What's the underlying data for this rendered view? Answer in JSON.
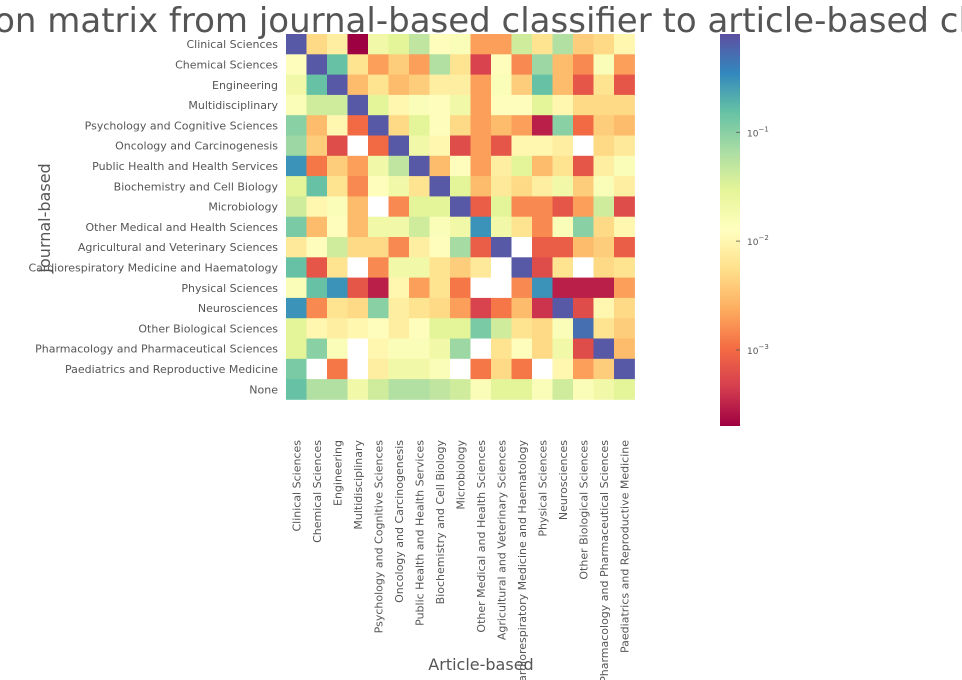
{
  "chart_data": {
    "type": "heatmap",
    "title": "Transition matrix from journal-based classifier to article-based classifier",
    "xlabel": "Article-based",
    "ylabel": "Journal-based",
    "y_categories": [
      "Clinical Sciences",
      "Chemical Sciences",
      "Engineering",
      "Multidisciplinary",
      "Psychology and Cognitive Sciences",
      "Oncology and Carcinogenesis",
      "Public Health and Health Services",
      "Biochemistry and Cell Biology",
      "Microbiology",
      "Other Medical and Health Sciences",
      "Agricultural and Veterinary Sciences",
      "Cardiorespiratory Medicine and Haematology",
      "Physical Sciences",
      "Neurosciences",
      "Other Biological Sciences",
      "Pharmacology and Pharmaceutical Sciences",
      "Paediatrics and Reproductive Medicine",
      "None"
    ],
    "x_categories": [
      "Clinical Sciences",
      "Chemical Sciences",
      "Engineering",
      "Multidisciplinary",
      "Psychology and Cognitive Sciences",
      "Oncology and Carcinogenesis",
      "Public Health and Health Services",
      "Biochemistry and Cell Biology",
      "Microbiology",
      "Other Medical and Health Sciences",
      "Agricultural and Veterinary Sciences",
      "Cardiorespiratory Medicine and Haematology",
      "Physical Sciences",
      "Neurosciences",
      "Other Biological Sciences",
      "Pharmacology and Pharmaceutical Sciences",
      "Paediatrics and Reproductive Medicine"
    ],
    "scale": "log",
    "colormap": "Spectral",
    "colorbar_range": [
      0.0002,
      0.8
    ],
    "colorbar_ticks": [
      {
        "base": "10",
        "exp": "−1",
        "value": 0.1
      },
      {
        "base": "10",
        "exp": "−2",
        "value": 0.01
      },
      {
        "base": "10",
        "exp": "−3",
        "value": 0.001
      }
    ],
    "values": [
      [
        0.7,
        0.005,
        0.008,
        0.0002,
        0.02,
        0.03,
        0.05,
        0.012,
        0.015,
        0.002,
        0.002,
        0.04,
        0.006,
        0.06,
        0.004,
        0.005,
        0.01
      ],
      [
        0.012,
        0.7,
        0.15,
        0.006,
        0.002,
        0.004,
        0.002,
        0.06,
        0.006,
        0.0005,
        0.012,
        0.0015,
        0.08,
        0.003,
        0.0015,
        0.015,
        0.002
      ],
      [
        0.02,
        0.15,
        0.7,
        0.003,
        0.006,
        0.003,
        0.004,
        0.008,
        0.008,
        0.002,
        0.015,
        0.004,
        0.15,
        0.003,
        0.0007,
        0.006,
        0.0007
      ],
      [
        0.015,
        0.04,
        0.04,
        0.7,
        0.03,
        0.01,
        0.015,
        0.012,
        0.02,
        0.002,
        0.012,
        0.012,
        0.03,
        0.01,
        0.005,
        0.005,
        0.005
      ],
      [
        0.1,
        0.003,
        0.01,
        0.001,
        0.7,
        0.005,
        0.03,
        0.012,
        0.005,
        0.002,
        0.003,
        0.002,
        0.0003,
        0.1,
        0.001,
        0.004,
        0.003
      ],
      [
        0.08,
        0.004,
        0.0006,
        null,
        0.001,
        0.7,
        0.02,
        0.01,
        0.0006,
        0.002,
        0.0007,
        0.01,
        0.01,
        0.008,
        null,
        0.005,
        0.007
      ],
      [
        0.3,
        0.0012,
        0.004,
        0.002,
        0.02,
        0.05,
        0.7,
        0.003,
        0.012,
        0.002,
        0.008,
        0.03,
        0.003,
        0.006,
        0.0007,
        0.008,
        0.015
      ],
      [
        0.03,
        0.15,
        0.006,
        0.0015,
        0.012,
        0.02,
        0.006,
        0.7,
        0.03,
        0.003,
        0.007,
        0.005,
        0.008,
        0.02,
        0.004,
        0.015,
        0.008
      ],
      [
        0.04,
        0.01,
        0.015,
        0.003,
        null,
        0.0015,
        0.03,
        0.03,
        0.7,
        0.0008,
        0.03,
        0.0015,
        0.0015,
        0.0007,
        0.002,
        0.04,
        0.0006
      ],
      [
        0.12,
        0.003,
        0.012,
        0.003,
        0.02,
        0.02,
        0.04,
        0.015,
        0.02,
        0.3,
        0.02,
        0.006,
        0.0015,
        0.015,
        0.1,
        0.005,
        0.01
      ],
      [
        0.007,
        0.012,
        0.04,
        0.005,
        0.005,
        0.0015,
        0.008,
        0.012,
        0.07,
        0.0008,
        0.7,
        null,
        0.0008,
        0.0008,
        0.003,
        0.004,
        0.0008
      ],
      [
        0.15,
        0.0007,
        0.006,
        null,
        0.0015,
        0.02,
        0.02,
        0.006,
        0.004,
        0.007,
        null,
        0.7,
        0.0006,
        0.006,
        null,
        0.005,
        0.006
      ],
      [
        0.015,
        0.15,
        0.3,
        0.0007,
        0.0003,
        0.01,
        0.002,
        0.006,
        0.0012,
        null,
        null,
        0.0015,
        0.3,
        0.0003,
        0.0003,
        0.0003,
        0.002
      ],
      [
        0.3,
        0.0015,
        0.006,
        0.005,
        0.1,
        0.008,
        0.006,
        0.005,
        0.002,
        0.0005,
        0.0012,
        0.003,
        0.0004,
        0.7,
        0.0006,
        0.01,
        0.005
      ],
      [
        0.03,
        0.01,
        0.008,
        0.01,
        0.012,
        0.008,
        0.012,
        0.03,
        0.03,
        0.12,
        0.04,
        0.006,
        0.005,
        0.015,
        0.5,
        0.006,
        0.004
      ],
      [
        0.03,
        0.1,
        0.015,
        null,
        0.01,
        0.015,
        0.015,
        0.02,
        0.08,
        null,
        0.006,
        0.012,
        0.005,
        0.02,
        0.0006,
        0.7,
        0.003
      ],
      [
        0.12,
        null,
        0.0012,
        null,
        0.008,
        0.02,
        0.02,
        0.015,
        null,
        0.0012,
        0.005,
        0.0012,
        null,
        0.01,
        0.002,
        0.004,
        0.7
      ],
      [
        0.15,
        0.06,
        0.06,
        0.02,
        0.04,
        0.06,
        0.06,
        0.05,
        0.04,
        0.015,
        0.03,
        0.03,
        0.015,
        0.04,
        0.015,
        0.02,
        0.03
      ]
    ]
  }
}
